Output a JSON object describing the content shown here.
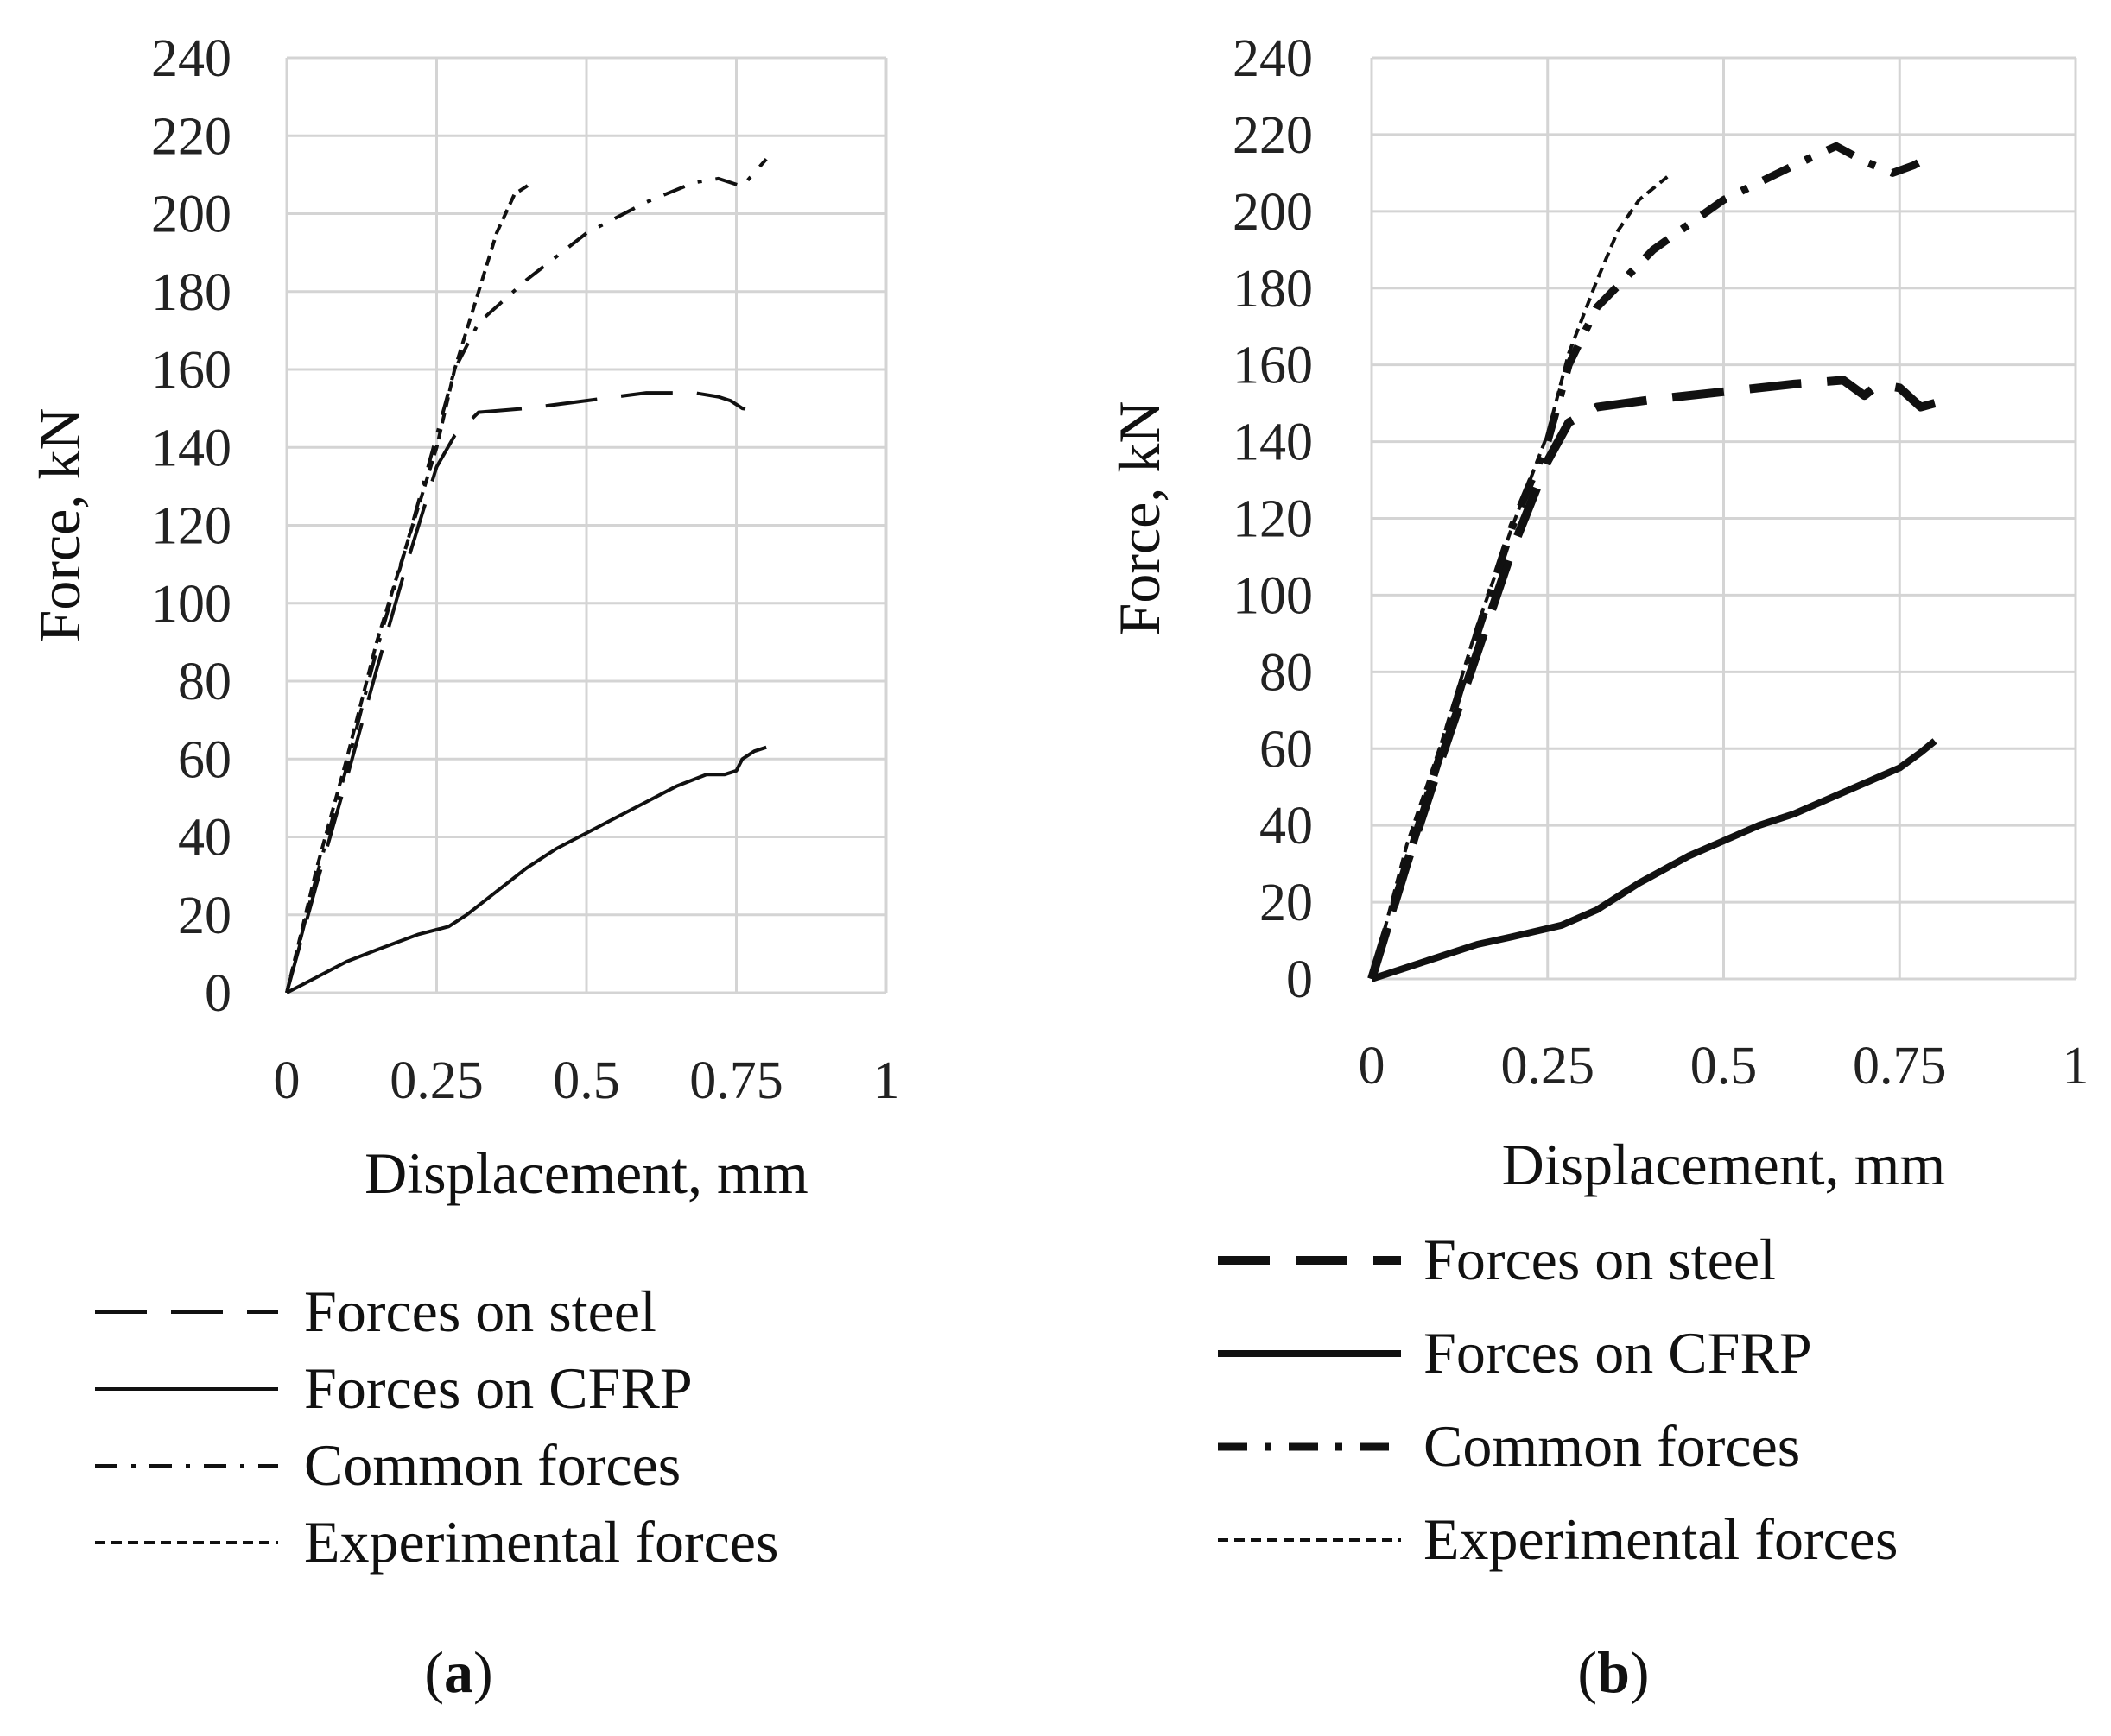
{
  "chart_data": [
    {
      "type": "line",
      "panel_label": "a",
      "xlabel": "Displacement, mm",
      "ylabel": "Force, kN",
      "xlim": [
        0,
        1
      ],
      "ylim": [
        0,
        240
      ],
      "x_ticks": [
        "0",
        "0.25",
        "0.5",
        "0.75",
        "1"
      ],
      "y_ticks": [
        "0",
        "20",
        "40",
        "60",
        "80",
        "100",
        "120",
        "140",
        "160",
        "180",
        "200",
        "220",
        "240"
      ],
      "grid": true,
      "legend_position": "bottom",
      "series": [
        {
          "name": "Forces on steel",
          "style": "dashed",
          "x": [
            0,
            0.05,
            0.1,
            0.15,
            0.2,
            0.25,
            0.28,
            0.32,
            0.4,
            0.5,
            0.6,
            0.68,
            0.72,
            0.74,
            0.76,
            0.8
          ],
          "y": [
            0,
            28,
            55,
            83,
            110,
            135,
            143,
            149,
            150,
            152,
            154,
            154,
            153,
            152,
            150,
            149
          ]
        },
        {
          "name": "Forces on CFRP",
          "style": "solid",
          "x": [
            0,
            0.05,
            0.1,
            0.15,
            0.22,
            0.27,
            0.3,
            0.35,
            0.4,
            0.45,
            0.5,
            0.55,
            0.6,
            0.65,
            0.7,
            0.73,
            0.75,
            0.76,
            0.78,
            0.8
          ],
          "y": [
            0,
            4,
            8,
            11,
            15,
            17,
            20,
            26,
            32,
            37,
            41,
            45,
            49,
            53,
            56,
            56,
            57,
            60,
            62,
            63
          ]
        },
        {
          "name": "Common forces",
          "style": "dashdot",
          "x": [
            0,
            0.05,
            0.1,
            0.15,
            0.2,
            0.25,
            0.28,
            0.32,
            0.4,
            0.5,
            0.6,
            0.68,
            0.72,
            0.76,
            0.8
          ],
          "y": [
            0,
            30,
            58,
            88,
            115,
            143,
            160,
            172,
            183,
            195,
            203,
            208,
            209,
            207,
            214
          ]
        },
        {
          "name": "Experimental forces",
          "style": "shortdash",
          "x": [
            0,
            0.05,
            0.1,
            0.15,
            0.2,
            0.25,
            0.28,
            0.32,
            0.35,
            0.38,
            0.41
          ],
          "y": [
            0,
            32,
            60,
            90,
            115,
            140,
            160,
            180,
            195,
            205,
            208
          ]
        }
      ]
    },
    {
      "type": "line",
      "panel_label": "b",
      "xlabel": "Displacement, mm",
      "ylabel": "Force, kN",
      "xlim": [
        0,
        1
      ],
      "ylim": [
        0,
        240
      ],
      "x_ticks": [
        "0",
        "0.25",
        "0.5",
        "0.75",
        "1"
      ],
      "y_ticks": [
        "0",
        "20",
        "40",
        "60",
        "80",
        "100",
        "120",
        "140",
        "160",
        "180",
        "200",
        "220",
        "240"
      ],
      "grid": true,
      "legend_position": "bottom",
      "series": [
        {
          "name": "Forces on steel",
          "style": "dashed-bold",
          "x": [
            0,
            0.05,
            0.1,
            0.15,
            0.2,
            0.25,
            0.28,
            0.32,
            0.4,
            0.5,
            0.6,
            0.67,
            0.7,
            0.72,
            0.75,
            0.78,
            0.8
          ],
          "y": [
            0,
            30,
            58,
            85,
            112,
            135,
            145,
            149,
            151,
            153,
            155,
            156,
            152,
            155,
            154,
            149,
            150
          ]
        },
        {
          "name": "Forces on CFRP",
          "style": "solid-bold",
          "x": [
            0,
            0.05,
            0.1,
            0.15,
            0.2,
            0.27,
            0.32,
            0.38,
            0.45,
            0.5,
            0.55,
            0.6,
            0.65,
            0.7,
            0.75,
            0.78,
            0.8
          ],
          "y": [
            0,
            3,
            6,
            9,
            11,
            14,
            18,
            25,
            32,
            36,
            40,
            43,
            47,
            51,
            55,
            59,
            62
          ]
        },
        {
          "name": "Common forces",
          "style": "dashdot-bold",
          "x": [
            0,
            0.05,
            0.1,
            0.15,
            0.2,
            0.25,
            0.28,
            0.32,
            0.4,
            0.5,
            0.6,
            0.66,
            0.7,
            0.74,
            0.77,
            0.79
          ],
          "y": [
            0,
            30,
            60,
            90,
            118,
            140,
            160,
            175,
            190,
            203,
            212,
            217,
            213,
            210,
            212,
            214
          ]
        },
        {
          "name": "Experimental forces",
          "style": "shortdash",
          "x": [
            0,
            0.05,
            0.1,
            0.15,
            0.2,
            0.25,
            0.28,
            0.32,
            0.35,
            0.38,
            0.42
          ],
          "y": [
            0,
            35,
            62,
            92,
            118,
            142,
            163,
            182,
            195,
            203,
            209
          ]
        }
      ]
    }
  ]
}
